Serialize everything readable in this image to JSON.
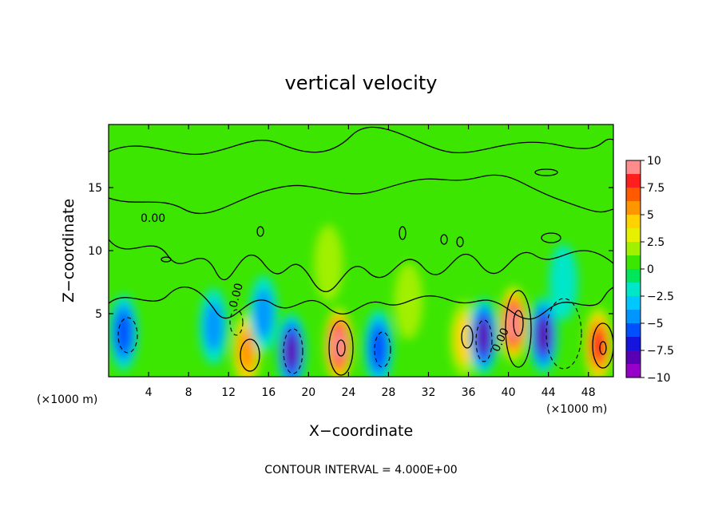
{
  "chart_data": {
    "type": "heatmap",
    "title": "vertical velocity",
    "xlabel": "X−coordinate",
    "ylabel": "Z−coordinate",
    "x_unit_left": "(×1000 m)",
    "x_unit_right": "(×1000 m)",
    "footer": "CONTOUR INTERVAL = 4.000E+00",
    "xlim": [
      0,
      50.5
    ],
    "ylim": [
      0,
      20
    ],
    "x_ticks": [
      4,
      8,
      12,
      16,
      20,
      24,
      28,
      32,
      36,
      40,
      44,
      48
    ],
    "y_ticks": [
      5,
      10,
      15
    ],
    "colorbar": {
      "vmin": -10,
      "vmax": 10,
      "ticks": [
        10,
        7.5,
        5,
        2.5,
        0,
        -2.5,
        -5,
        -7.5,
        -10
      ],
      "tick_labels": [
        "10",
        "7.5",
        "5",
        "2.5",
        "0",
        "−2.5",
        "−5",
        "−7.5",
        "−10"
      ],
      "colors": [
        "#ff8c8c",
        "#ff1e1e",
        "#ff5a00",
        "#ff9600",
        "#ffd200",
        "#e6f000",
        "#a0f000",
        "#3ce600",
        "#00e65a",
        "#00e6c8",
        "#00c8ff",
        "#0096ff",
        "#0050ff",
        "#1414dc",
        "#5a00b4",
        "#9600c8"
      ]
    },
    "contour_labels": [
      "0.00",
      "0.00",
      "0.00"
    ],
    "features": [
      {
        "x": 13.8,
        "z": 2.1,
        "value": 6
      },
      {
        "x": 18.3,
        "z": 2.0,
        "value": -7
      },
      {
        "x": 23.0,
        "z": 2.5,
        "value": 9
      },
      {
        "x": 27.0,
        "z": 2.3,
        "value": -6
      },
      {
        "x": 35.6,
        "z": 3.0,
        "value": 4
      },
      {
        "x": 37.5,
        "z": 3.2,
        "value": -7
      },
      {
        "x": 40.5,
        "z": 4.2,
        "value": 9
      },
      {
        "x": 43.5,
        "z": 3.3,
        "value": -7
      },
      {
        "x": 49.0,
        "z": 2.5,
        "value": 8
      },
      {
        "x": 1.5,
        "z": 3.5,
        "value": -5
      },
      {
        "x": 10.5,
        "z": 4.0,
        "value": -4
      },
      {
        "x": 15.5,
        "z": 5.0,
        "value": -3
      },
      {
        "x": 45.5,
        "z": 7.5,
        "value": -2.5
      },
      {
        "x": 22.0,
        "z": 9.0,
        "value": 2
      },
      {
        "x": 30.0,
        "z": 6.0,
        "value": 2
      }
    ]
  }
}
